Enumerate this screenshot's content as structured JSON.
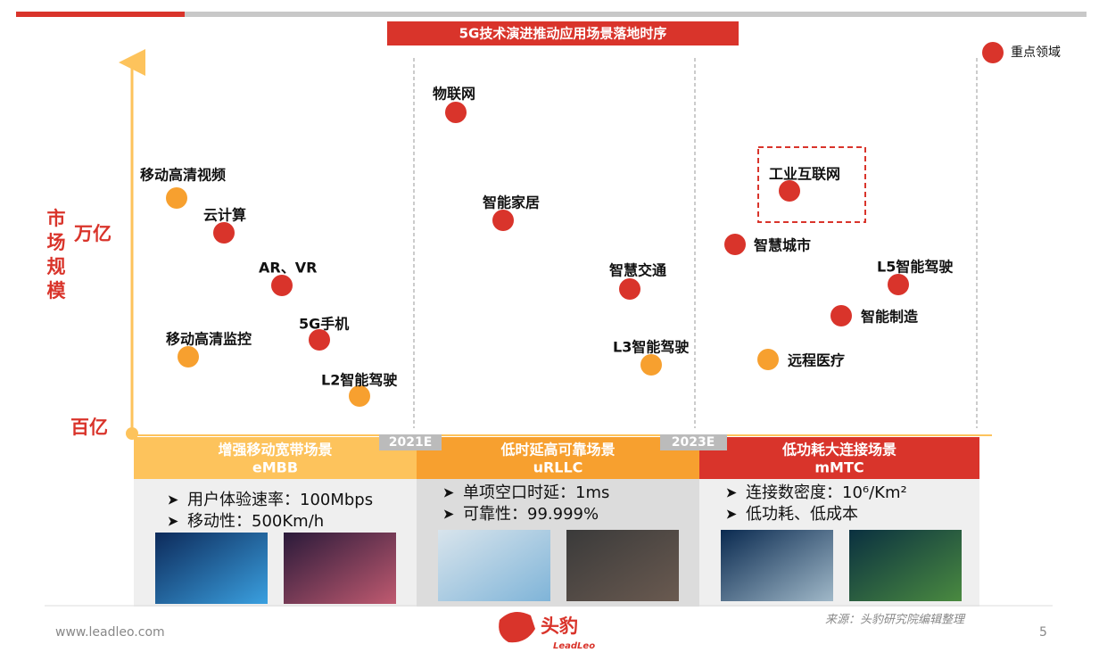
{
  "header": {
    "title": "5G技术演进推动应用场景落地时序"
  },
  "legend": {
    "label": "重点领域",
    "color": "#d9342b"
  },
  "y_axis": {
    "label": "市场规模",
    "high": "万亿",
    "low": "百亿"
  },
  "milestones": [
    "2021E",
    "2023E"
  ],
  "points": [
    {
      "label": "移动高清视频",
      "color": "#f7a02f"
    },
    {
      "label": "云计算",
      "color": "#d9342b"
    },
    {
      "label": "AR、VR",
      "color": "#d9342b"
    },
    {
      "label": "移动高清监控",
      "color": "#f7a02f"
    },
    {
      "label": "5G手机",
      "color": "#d9342b"
    },
    {
      "label": "L2智能驾驶",
      "color": "#f7a02f"
    },
    {
      "label": "物联网",
      "color": "#d9342b"
    },
    {
      "label": "智能家居",
      "color": "#d9342b"
    },
    {
      "label": "智慧交通",
      "color": "#d9342b"
    },
    {
      "label": "L3智能驾驶",
      "color": "#f7a02f"
    },
    {
      "label": "工业互联网",
      "color": "#d9342b"
    },
    {
      "label": "智慧城市",
      "color": "#d9342b"
    },
    {
      "label": "L5智能驾驶",
      "color": "#d9342b"
    },
    {
      "label": "智能制造",
      "color": "#d9342b"
    },
    {
      "label": "远程医疗",
      "color": "#f7a02f"
    }
  ],
  "phases": [
    {
      "title": "增强移动宽带场景",
      "code": "eMBB",
      "color": "#fdc35c",
      "bullets": [
        "用户体验速率：100Mbps",
        "移动性：500Km/h"
      ]
    },
    {
      "title": "低时延高可靠场景",
      "code": "uRLLC",
      "color": "#f7a02f",
      "bullets": [
        "单项空口时延：1ms",
        "可靠性：99.999%"
      ]
    },
    {
      "title": "低功耗大连接场景",
      "code": "mMTC",
      "color": "#d9342b",
      "bullets": [
        "连接数密度：10⁶/Km²",
        "低功耗、低成本"
      ]
    }
  ],
  "footer": {
    "website": "www.leadleo.com",
    "logo": "头豹",
    "logo_sub": "LeadLeo",
    "source": "来源：头豹研究院编辑整理",
    "page": "5"
  }
}
